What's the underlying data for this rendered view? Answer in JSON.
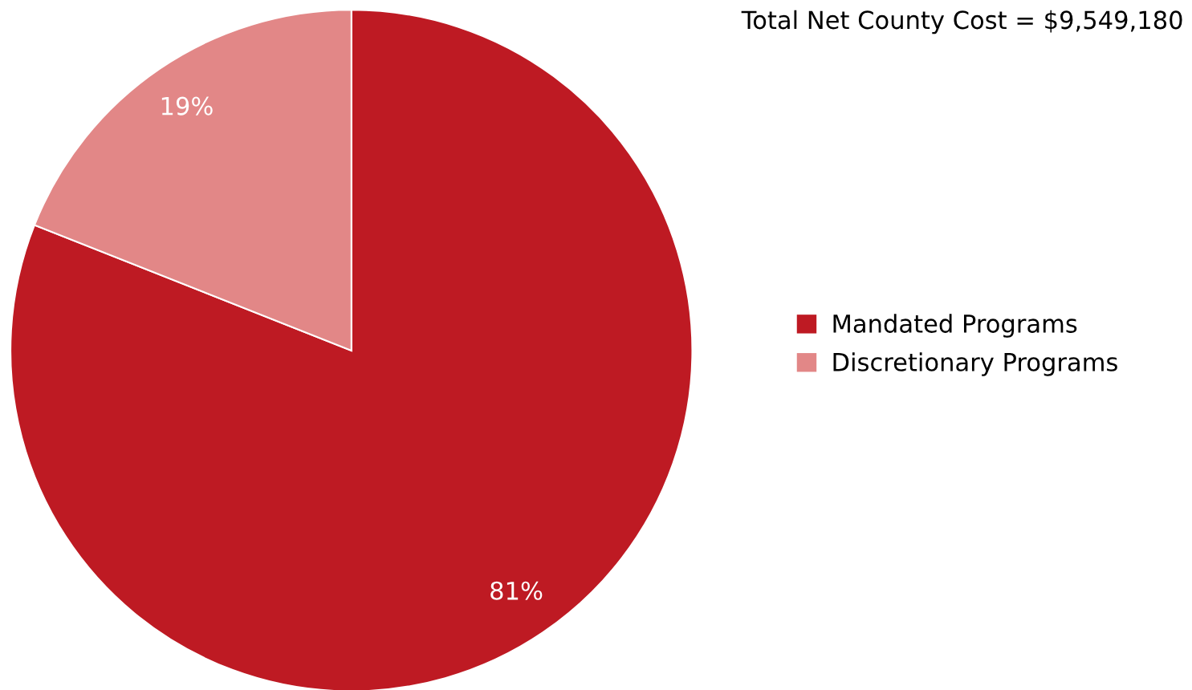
{
  "chart_data": {
    "type": "pie",
    "title": "Total Net County Cost = $9,549,180",
    "categories": [
      "Mandated Programs",
      "Discretionary Programs"
    ],
    "values": [
      81,
      19
    ],
    "colors": [
      "#be1a23",
      "#e28787"
    ],
    "value_labels": [
      "81%",
      "19%"
    ],
    "legend": "right"
  }
}
